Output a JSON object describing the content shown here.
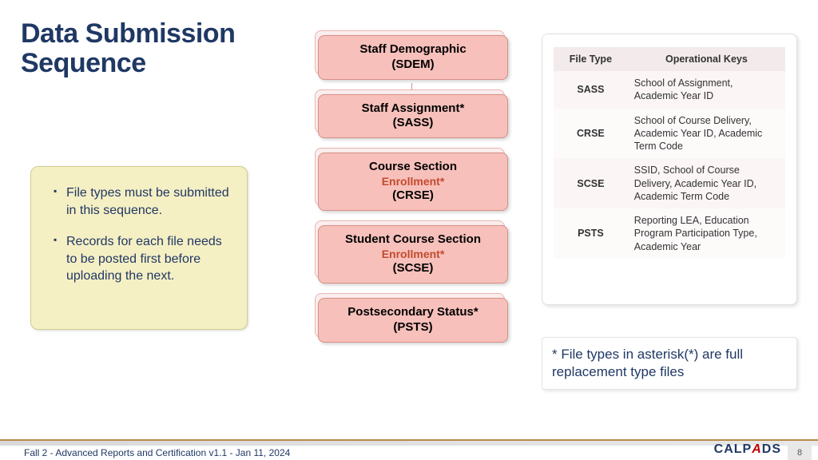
{
  "title_line1": "Data Submission",
  "title_line2": " Sequence",
  "notes": {
    "item1": "File types must be submitted in this sequence.",
    "item2": "Records for each file needs to be posted first before uploading the next."
  },
  "flow": {
    "n1_l1": "Staff Demographic",
    "n1_l2": "(SDEM)",
    "n2_l1": "Staff Assignment*",
    "n2_l2": "(SASS)",
    "n3_l1": "Course Section",
    "n3_sub": "Enrollment*",
    "n3_l2": "(CRSE)",
    "n4_l1": "Student Course Section",
    "n4_sub": "Enrollment*",
    "n4_l2": "(SCSE)",
    "n5_l1": "Postsecondary Status*",
    "n5_l2": "(PSTS)"
  },
  "table": {
    "h1": "File Type",
    "h2": "Operational Keys",
    "r1c1": "SASS",
    "r1c2": "School of Assignment, Academic Year ID",
    "r2c1": "CRSE",
    "r2c2": "School of Course Delivery, Academic Year ID, Academic Term Code",
    "r3c1": "SCSE",
    "r3c2": "SSID, School of Course Delivery, Academic Year ID, Academic Term Code",
    "r4c1": "PSTS",
    "r4c2": "Reporting LEA, Education Program Participation Type, Academic Year"
  },
  "asterisk_note": "* File types in asterisk(*) are full replacement type files",
  "footer": "Fall 2 - Advanced Reports and Certification v1.1 - Jan 11, 2024",
  "logo_main": "CALP",
  "logo_red": "A",
  "logo_end": "DS",
  "page_number": "8"
}
